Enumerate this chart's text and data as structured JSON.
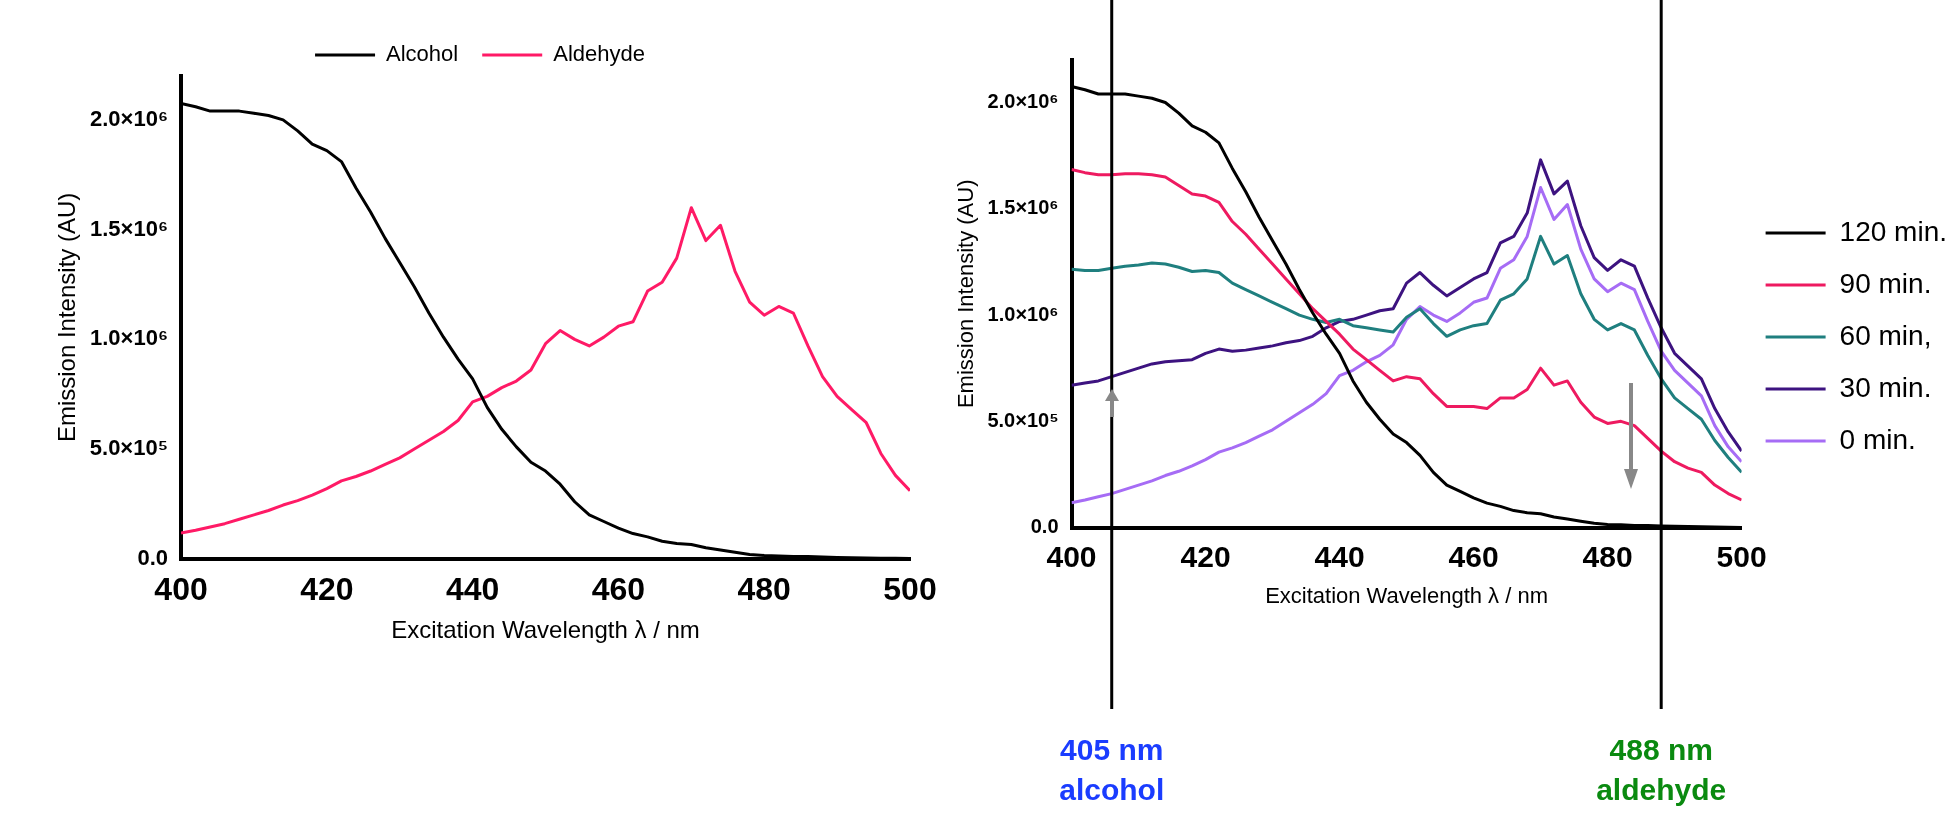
{
  "chart_data": [
    {
      "type": "line",
      "xlabel": "Excitation Wavelength λ / nm",
      "ylabel": "Emission Intensity (AU)",
      "legend": "top",
      "marker": "none",
      "line_style": "solid",
      "grid": false,
      "x": [
        400,
        402,
        404,
        406,
        408,
        410,
        412,
        414,
        416,
        418,
        420,
        422,
        424,
        426,
        428,
        430,
        432,
        434,
        436,
        438,
        440,
        442,
        444,
        446,
        448,
        450,
        452,
        454,
        456,
        458,
        460,
        462,
        464,
        466,
        468,
        470,
        472,
        474,
        476,
        478,
        480,
        482,
        484,
        486,
        488,
        490,
        492,
        494,
        496,
        498,
        500
      ],
      "xlim": [
        400,
        500
      ],
      "xticks": [
        400,
        420,
        440,
        460,
        480,
        500
      ],
      "ylim": [
        0,
        2200000
      ],
      "yticks": [
        {
          "value": 0,
          "label": "0.0"
        },
        {
          "value": 500000,
          "label": "5.0×10⁵"
        },
        {
          "value": 1000000,
          "label": "1.0×10⁶"
        },
        {
          "value": 1500000,
          "label": "1.5×10⁶"
        },
        {
          "value": 2000000,
          "label": "2.0×10⁶"
        }
      ],
      "series": [
        {
          "name": "Alcohol",
          "color": "#000000",
          "values": [
            2075000,
            2060000,
            2040000,
            2040000,
            2040000,
            2030000,
            2020000,
            2000000,
            1950000,
            1890000,
            1860000,
            1810000,
            1690000,
            1580000,
            1460000,
            1350000,
            1240000,
            1120000,
            1010000,
            910000,
            820000,
            690000,
            590000,
            510000,
            440000,
            400000,
            340000,
            260000,
            200000,
            170000,
            140000,
            115000,
            100000,
            80000,
            70000,
            65000,
            50000,
            40000,
            30000,
            20000,
            15000,
            13000,
            10000,
            10000,
            8000,
            6000,
            5000,
            4000,
            3000,
            2000,
            1000
          ]
        },
        {
          "name": "Aldehyde",
          "color": "#ff1a66",
          "values": [
            117000,
            130000,
            145000,
            160000,
            180000,
            200000,
            220000,
            245000,
            265000,
            290000,
            320000,
            355000,
            375000,
            400000,
            430000,
            460000,
            500000,
            540000,
            580000,
            630000,
            715000,
            740000,
            780000,
            810000,
            860000,
            980000,
            1040000,
            1000000,
            970000,
            1010000,
            1060000,
            1080000,
            1220000,
            1260000,
            1370000,
            1600000,
            1450000,
            1520000,
            1310000,
            1170000,
            1110000,
            1150000,
            1120000,
            970000,
            830000,
            740000,
            680000,
            620000,
            480000,
            380000,
            310000
          ]
        }
      ]
    },
    {
      "type": "line",
      "xlabel": "Excitation Wavelength λ / nm",
      "ylabel": "Emission Intensity (AU)",
      "legend": "right",
      "marker": "none",
      "line_style": "solid",
      "grid": false,
      "x": [
        400,
        402,
        404,
        406,
        408,
        410,
        412,
        414,
        416,
        418,
        420,
        422,
        424,
        426,
        428,
        430,
        432,
        434,
        436,
        438,
        440,
        442,
        444,
        446,
        448,
        450,
        452,
        454,
        456,
        458,
        460,
        462,
        464,
        466,
        468,
        470,
        472,
        474,
        476,
        478,
        480,
        482,
        484,
        486,
        488,
        490,
        492,
        494,
        496,
        498,
        500
      ],
      "xlim": [
        400,
        500
      ],
      "xticks": [
        400,
        420,
        440,
        460,
        480,
        500
      ],
      "ylim": [
        0,
        2200000
      ],
      "yticks": [
        {
          "value": 0,
          "label": "0.0"
        },
        {
          "value": 500000,
          "label": "5.0×10⁵"
        },
        {
          "value": 1000000,
          "label": "1.0×10⁶"
        },
        {
          "value": 1500000,
          "label": "1.5×10⁶"
        },
        {
          "value": 2000000,
          "label": "2.0×10⁶"
        }
      ],
      "ref_lines": [
        {
          "axis": "x",
          "value": 406,
          "label": "405 nm\nalcohol"
        },
        {
          "axis": "x",
          "value": 488,
          "label": "488 nm\naldehyde"
        }
      ],
      "series": [
        {
          "name": "120 min.",
          "color": "#000000",
          "values": [
            2075000,
            2060000,
            2040000,
            2040000,
            2040000,
            2030000,
            2020000,
            2000000,
            1950000,
            1890000,
            1860000,
            1810000,
            1690000,
            1580000,
            1460000,
            1350000,
            1240000,
            1120000,
            1010000,
            910000,
            820000,
            690000,
            590000,
            510000,
            440000,
            400000,
            340000,
            260000,
            200000,
            170000,
            140000,
            115000,
            100000,
            80000,
            70000,
            65000,
            50000,
            40000,
            30000,
            20000,
            15000,
            13000,
            10000,
            10000,
            8000,
            6000,
            5000,
            4000,
            3000,
            2000,
            1000
          ]
        },
        {
          "name": "90 min.",
          "color": "#ee1a60",
          "values": [
            1685000,
            1670000,
            1660000,
            1660000,
            1665000,
            1665000,
            1660000,
            1650000,
            1610000,
            1570000,
            1560000,
            1530000,
            1440000,
            1380000,
            1310000,
            1240000,
            1170000,
            1100000,
            1030000,
            970000,
            910000,
            840000,
            790000,
            740000,
            690000,
            710000,
            700000,
            630000,
            570000,
            570000,
            570000,
            560000,
            610000,
            610000,
            650000,
            750000,
            670000,
            690000,
            590000,
            520000,
            490000,
            500000,
            480000,
            420000,
            360000,
            310000,
            280000,
            260000,
            200000,
            160000,
            130000
          ]
        },
        {
          "name": "60 min,",
          "color": "#1f7f7f",
          "values": [
            1215000,
            1210000,
            1210000,
            1220000,
            1230000,
            1235000,
            1245000,
            1240000,
            1225000,
            1205000,
            1210000,
            1200000,
            1150000,
            1120000,
            1090000,
            1060000,
            1030000,
            1000000,
            980000,
            965000,
            980000,
            950000,
            940000,
            930000,
            920000,
            990000,
            1030000,
            960000,
            900000,
            930000,
            950000,
            960000,
            1070000,
            1100000,
            1170000,
            1370000,
            1240000,
            1280000,
            1100000,
            980000,
            930000,
            960000,
            930000,
            810000,
            700000,
            610000,
            560000,
            510000,
            410000,
            330000,
            260000
          ]
        },
        {
          "name": "30 min.",
          "color": "#3d1380",
          "values": [
            670000,
            680000,
            690000,
            710000,
            730000,
            750000,
            770000,
            780000,
            785000,
            790000,
            820000,
            840000,
            830000,
            835000,
            845000,
            855000,
            870000,
            880000,
            900000,
            940000,
            970000,
            980000,
            1000000,
            1020000,
            1030000,
            1150000,
            1200000,
            1140000,
            1090000,
            1130000,
            1170000,
            1200000,
            1340000,
            1370000,
            1480000,
            1730000,
            1570000,
            1630000,
            1420000,
            1270000,
            1210000,
            1260000,
            1230000,
            1080000,
            940000,
            820000,
            760000,
            700000,
            560000,
            450000,
            360000
          ]
        },
        {
          "name": "0 min.",
          "color": "#a66cf5",
          "values": [
            117000,
            130000,
            145000,
            160000,
            180000,
            200000,
            220000,
            245000,
            265000,
            290000,
            320000,
            355000,
            375000,
            400000,
            430000,
            460000,
            500000,
            540000,
            580000,
            630000,
            715000,
            740000,
            780000,
            810000,
            860000,
            980000,
            1040000,
            1000000,
            970000,
            1010000,
            1060000,
            1080000,
            1220000,
            1260000,
            1370000,
            1600000,
            1450000,
            1520000,
            1310000,
            1170000,
            1110000,
            1150000,
            1120000,
            970000,
            830000,
            740000,
            680000,
            620000,
            480000,
            380000,
            310000
          ]
        }
      ]
    }
  ]
}
